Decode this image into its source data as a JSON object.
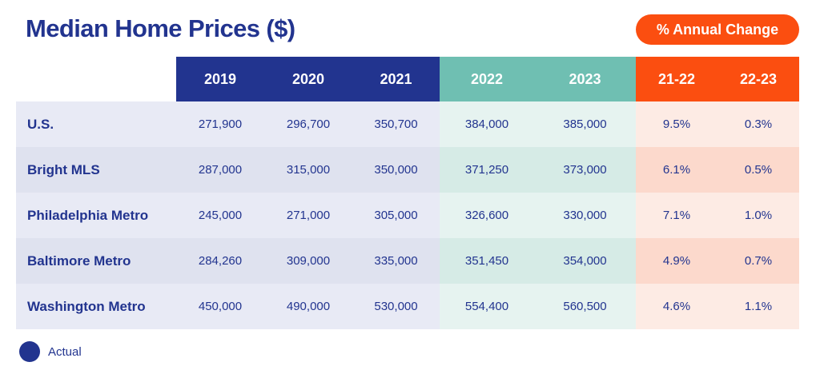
{
  "chart_data": {
    "type": "table",
    "title": "Median Home Prices ($)",
    "badge": "% Annual Change",
    "columns": [
      "2019",
      "2020",
      "2021",
      "2022",
      "2023",
      "21-22",
      "22-23"
    ],
    "rows": [
      {
        "label": "U.S.",
        "values": [
          "271,900",
          "296,700",
          "350,700",
          "384,000",
          "385,000",
          "9.5%",
          "0.3%"
        ]
      },
      {
        "label": "Bright MLS",
        "values": [
          "287,000",
          "315,000",
          "350,000",
          "371,250",
          "373,000",
          "6.1%",
          "0.5%"
        ]
      },
      {
        "label": "Philadelphia Metro",
        "values": [
          "245,000",
          "271,000",
          "305,000",
          "326,600",
          "330,000",
          "7.1%",
          "1.0%"
        ]
      },
      {
        "label": "Baltimore Metro",
        "values": [
          "284,260",
          "309,000",
          "335,000",
          "351,450",
          "354,000",
          "4.9%",
          "0.7%"
        ]
      },
      {
        "label": "Washington Metro",
        "values": [
          "450,000",
          "490,000",
          "530,000",
          "554,400",
          "560,500",
          "4.6%",
          "1.1%"
        ]
      }
    ],
    "legend": [
      {
        "label": "Actual",
        "color": "#22348f"
      }
    ]
  },
  "colors": {
    "title": "#22348f",
    "actual_header": "#22348f",
    "forecast_header": "#6fbfb2",
    "change_header": "#fb4e10",
    "actual_cell": [
      "#e8eaf5",
      "#dfe2ef"
    ],
    "forecast_cell": [
      "#e6f3f0",
      "#d6ebe6"
    ],
    "change_cell": [
      "#fdebe4",
      "#fcd9cc"
    ]
  }
}
